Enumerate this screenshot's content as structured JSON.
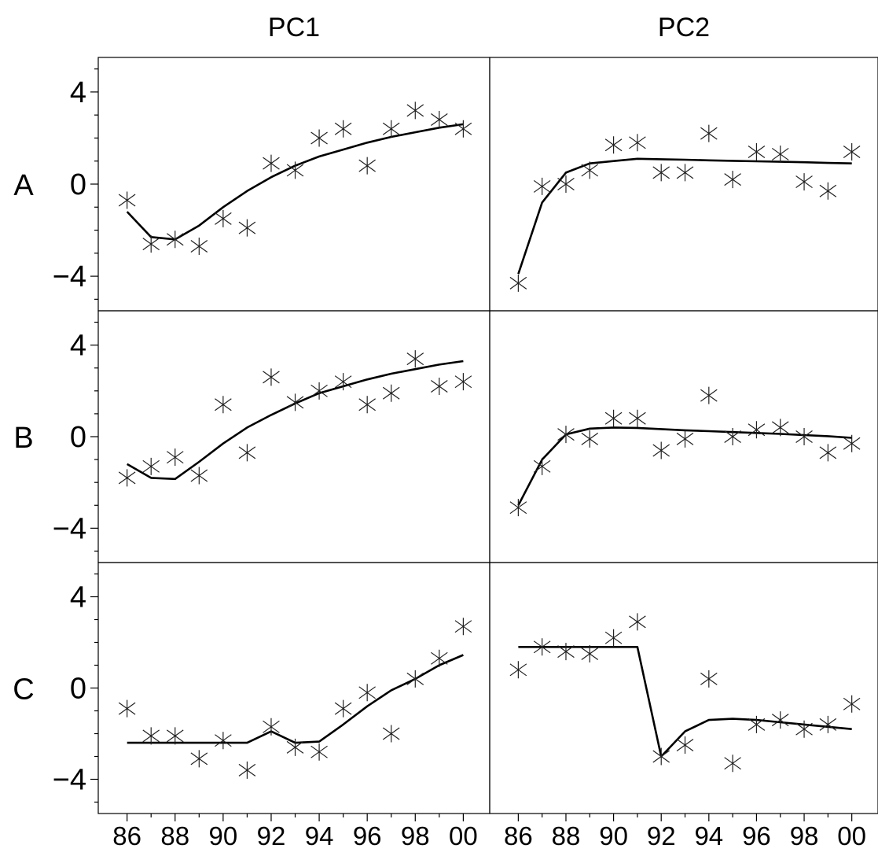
{
  "chart_data": {
    "type": "scatter",
    "columns": [
      "PC1",
      "PC2"
    ],
    "rows": [
      "A",
      "B",
      "C"
    ],
    "x_tick_labels": [
      "86",
      "88",
      "90",
      "92",
      "94",
      "96",
      "98",
      "00"
    ],
    "x_ticks": [
      1986,
      1988,
      1990,
      1992,
      1994,
      1996,
      1998,
      2000
    ],
    "y_tick_labels": [
      "4",
      "0",
      "−4"
    ],
    "y_ticks": [
      4,
      0,
      -4
    ],
    "xlim": [
      1984.8,
      2001.1
    ],
    "ylim": [
      -5.5,
      5.5
    ],
    "x": [
      1986,
      1987,
      1988,
      1989,
      1990,
      1991,
      1992,
      1993,
      1994,
      1995,
      1996,
      1997,
      1998,
      1999,
      2000
    ],
    "panels": [
      {
        "row": "A",
        "column": "PC1",
        "observed": [
          -0.7,
          -2.6,
          -2.4,
          -2.7,
          -1.5,
          -1.9,
          0.9,
          0.6,
          2.0,
          2.4,
          0.8,
          2.4,
          3.2,
          2.8,
          2.4
        ],
        "fitted": [
          -1.2,
          -2.3,
          -2.4,
          -1.8,
          -1.0,
          -0.3,
          0.3,
          0.8,
          1.2,
          1.5,
          1.8,
          2.05,
          2.25,
          2.45,
          2.6
        ]
      },
      {
        "row": "A",
        "column": "PC2",
        "observed": [
          -4.3,
          -0.1,
          0.0,
          0.6,
          1.7,
          1.8,
          0.5,
          0.5,
          2.2,
          0.2,
          1.4,
          1.3,
          0.1,
          -0.3,
          1.4
        ],
        "fitted": [
          -3.9,
          -0.8,
          0.5,
          0.9,
          1.0,
          1.1,
          1.08,
          1.06,
          1.03,
          1.01,
          0.99,
          0.97,
          0.95,
          0.92,
          0.9
        ]
      },
      {
        "row": "B",
        "column": "PC1",
        "observed": [
          -1.8,
          -1.3,
          -0.9,
          -1.7,
          1.4,
          -0.7,
          2.6,
          1.5,
          2.0,
          2.4,
          1.4,
          1.9,
          3.4,
          2.2,
          2.4
        ],
        "fitted": [
          -1.2,
          -1.8,
          -1.85,
          -1.1,
          -0.3,
          0.4,
          0.95,
          1.45,
          1.9,
          2.2,
          2.5,
          2.75,
          2.95,
          3.15,
          3.3
        ]
      },
      {
        "row": "B",
        "column": "PC2",
        "observed": [
          -3.1,
          -1.3,
          0.1,
          -0.1,
          0.8,
          0.8,
          -0.6,
          -0.1,
          1.8,
          0.0,
          0.3,
          0.4,
          0.0,
          -0.7,
          -0.3
        ],
        "fitted": [
          -3.0,
          -1.0,
          0.1,
          0.35,
          0.4,
          0.38,
          0.33,
          0.28,
          0.24,
          0.2,
          0.16,
          0.12,
          0.07,
          0.02,
          -0.05
        ]
      },
      {
        "row": "C",
        "column": "PC1",
        "observed": [
          -0.9,
          -2.1,
          -2.1,
          -3.1,
          -2.3,
          -3.6,
          -1.7,
          -2.6,
          -2.8,
          -0.9,
          -0.2,
          -2.0,
          0.4,
          1.3,
          2.7
        ],
        "fitted": [
          -2.4,
          -2.4,
          -2.4,
          -2.4,
          -2.4,
          -2.4,
          -1.9,
          -2.4,
          -2.35,
          -1.6,
          -0.8,
          -0.1,
          0.4,
          1.0,
          1.45
        ]
      },
      {
        "row": "C",
        "column": "PC2",
        "observed": [
          0.8,
          1.8,
          1.6,
          1.5,
          2.2,
          2.9,
          -3.0,
          -2.5,
          0.4,
          -3.3,
          -1.6,
          -1.4,
          -1.8,
          -1.6,
          -0.7
        ],
        "fitted": [
          1.8,
          1.8,
          1.8,
          1.8,
          1.8,
          1.8,
          -3.0,
          -1.9,
          -1.4,
          -1.35,
          -1.4,
          -1.5,
          -1.6,
          -1.7,
          -1.8
        ]
      }
    ]
  }
}
